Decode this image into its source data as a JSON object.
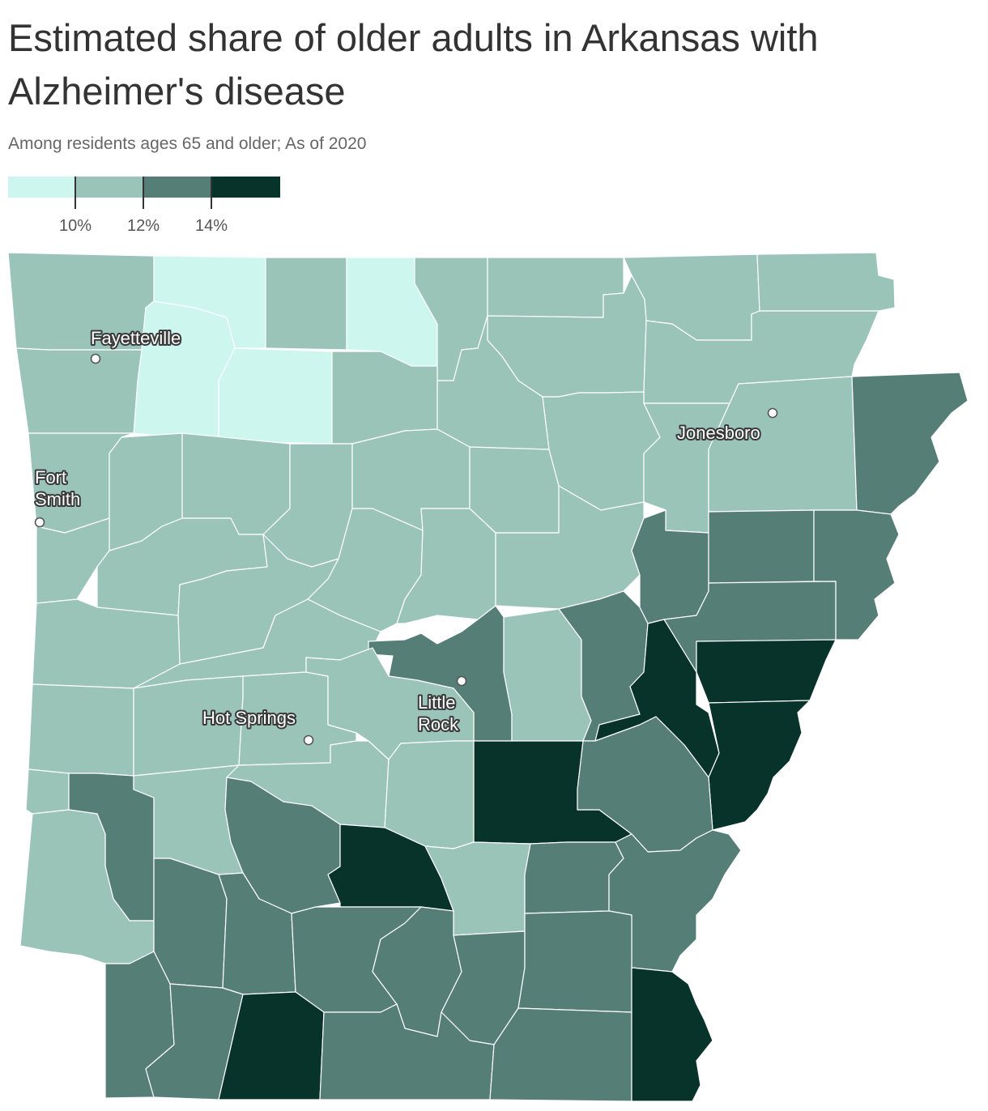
{
  "title": "Estimated share of older adults in Arkansas with Alzheimer's disease",
  "subtitle": "Among residents ages 65 and older; As of 2020",
  "legend": {
    "bins": [
      {
        "name": "under-10",
        "color": "#cdf7ee"
      },
      {
        "name": "10-12",
        "color": "#9bc4b9"
      },
      {
        "name": "12-14",
        "color": "#557e76"
      },
      {
        "name": "14-plus",
        "color": "#07332a"
      }
    ],
    "ticks": [
      "10%",
      "12%",
      "14%"
    ]
  },
  "colors": {
    "light": "#cdf7ee",
    "medium_light": "#9bc4b9",
    "medium_dark": "#557e76",
    "dark": "#07332a",
    "border": "#ffffff"
  },
  "cities": [
    {
      "name": "Fayetteville",
      "label_lines": [
        "Fayetteville"
      ]
    },
    {
      "name": "Jonesboro",
      "label_lines": [
        "Jonesboro"
      ]
    },
    {
      "name": "Fort Smith",
      "label_lines": [
        "Fort",
        "Smith"
      ]
    },
    {
      "name": "Little Rock",
      "label_lines": [
        "Little",
        "Rock"
      ]
    },
    {
      "name": "Hot Springs",
      "label_lines": [
        "Hot Springs"
      ]
    }
  ]
}
